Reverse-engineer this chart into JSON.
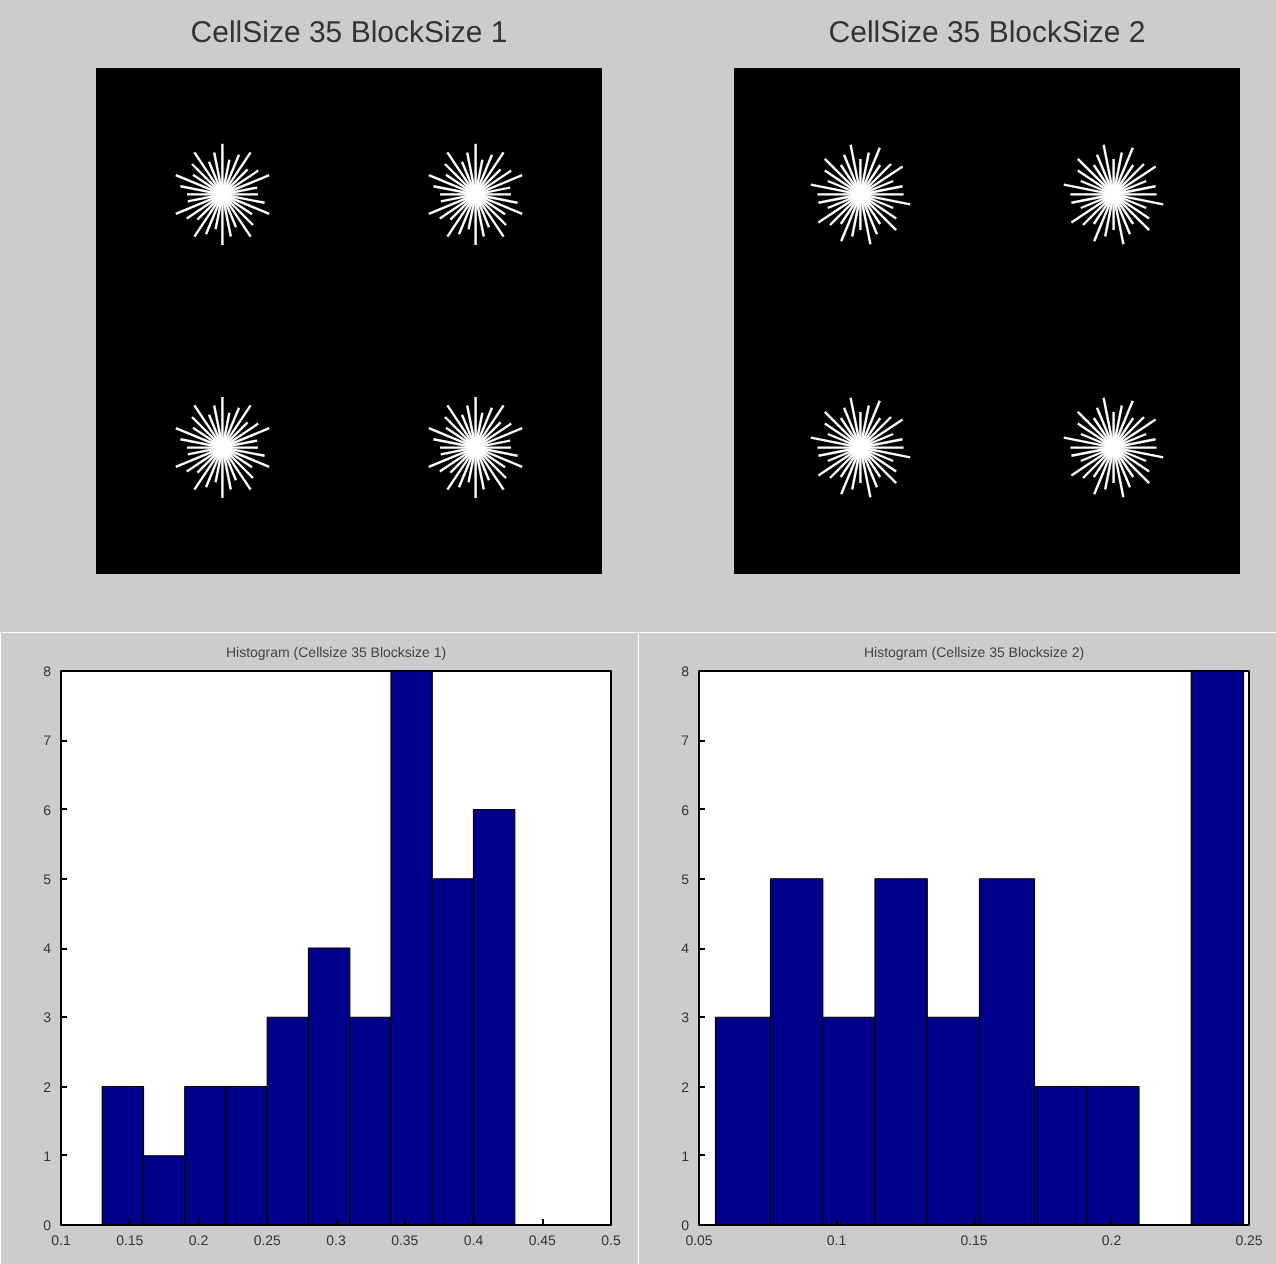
{
  "chart_data": [
    {
      "type": "other",
      "title": "CellSize 35 BlockSize 1"
    },
    {
      "type": "other",
      "title": "CellSize 35 BlockSize 2"
    },
    {
      "type": "histogram",
      "title": "Histogram (Cellsize 35 Blocksize 1)",
      "color": "#00008b",
      "bins": [
        0.13,
        0.16,
        0.19,
        0.22,
        0.25,
        0.28,
        0.31,
        0.34,
        0.37,
        0.4,
        0.43
      ],
      "values": [
        2,
        1,
        2,
        2,
        3,
        4,
        3,
        8,
        5,
        6
      ],
      "xlim": [
        0.1,
        0.5
      ],
      "xticks": [
        0.1,
        0.15,
        0.2,
        0.25,
        0.3,
        0.35,
        0.4,
        0.45,
        0.5
      ],
      "ylim": [
        0,
        8
      ],
      "yticks": [
        0,
        1,
        2,
        3,
        4,
        5,
        6,
        7,
        8
      ],
      "grid": false
    },
    {
      "type": "histogram",
      "title": "Histogram (Cellsize 35 Blocksize 2)",
      "color": "#00008b",
      "bins": [
        0.056,
        0.076,
        0.095,
        0.114,
        0.133,
        0.152,
        0.172,
        0.191,
        0.21,
        0.229,
        0.248
      ],
      "values": [
        3,
        5,
        3,
        5,
        3,
        5,
        2,
        2,
        0,
        8
      ],
      "xlim": [
        0.05,
        0.25
      ],
      "xticks": [
        0.05,
        0.1,
        0.15,
        0.2,
        0.25
      ],
      "ylim": [
        0,
        8
      ],
      "yticks": [
        0,
        1,
        2,
        3,
        4,
        5,
        6,
        7,
        8
      ],
      "grid": false
    }
  ]
}
